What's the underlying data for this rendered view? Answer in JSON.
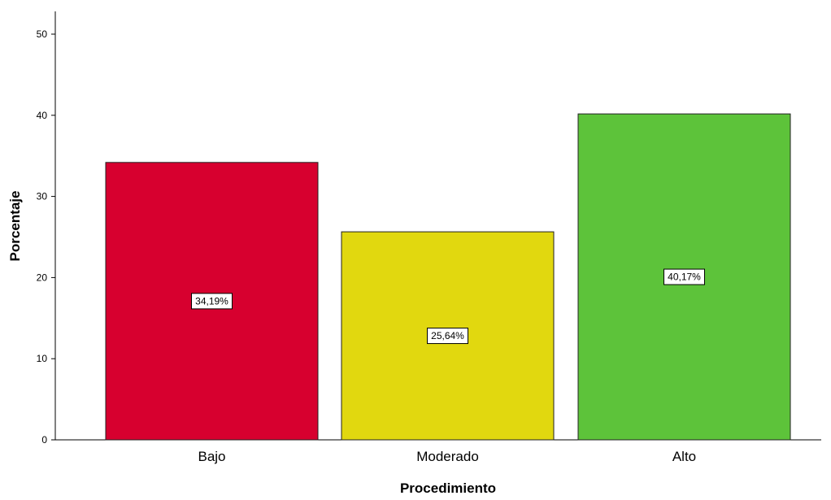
{
  "chart_data": {
    "type": "bar",
    "categories": [
      "Bajo",
      "Moderado",
      "Alto"
    ],
    "values": [
      34.19,
      25.64,
      40.17
    ],
    "data_labels": [
      "34,19%",
      "25,64%",
      "40,17%"
    ],
    "colors": [
      "#d7002f",
      "#e1d80f",
      "#5dc33a"
    ],
    "title": "",
    "xlabel": "Procedimiento",
    "ylabel": "Porcentaje",
    "ylim": [
      0,
      50
    ],
    "yticks": [
      0,
      10,
      20,
      30,
      40,
      50
    ],
    "ytick_labels": [
      "0",
      "10",
      "20",
      "30",
      "40",
      "50"
    ],
    "grid": false,
    "legend": "none"
  }
}
